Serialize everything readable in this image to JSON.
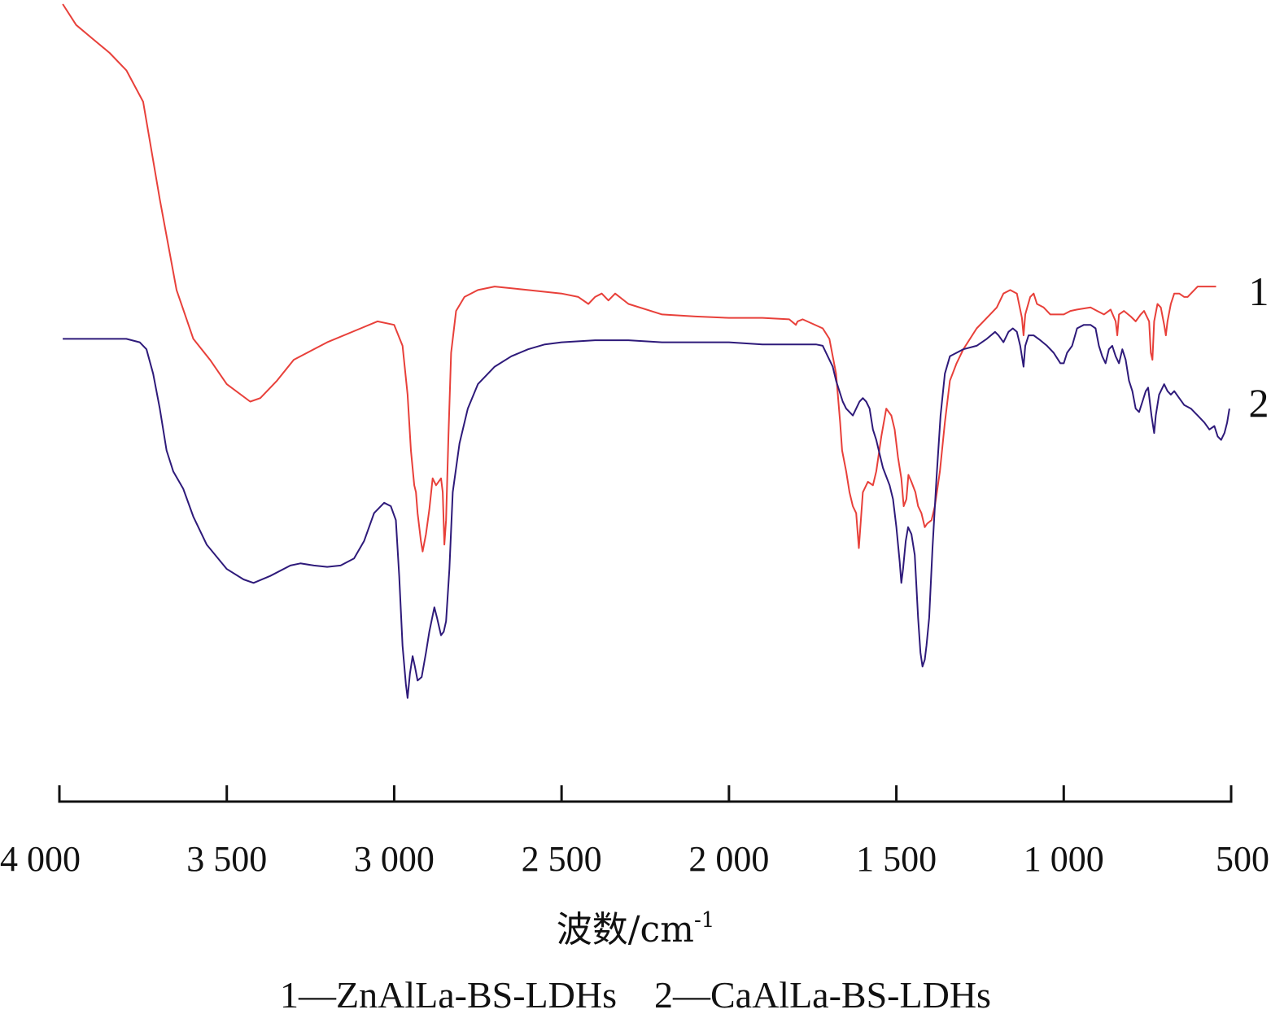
{
  "chart_data": {
    "type": "line",
    "xlabel": "波数/cm",
    "xlabel_sup": "-1",
    "xlim": [
      4000,
      500
    ],
    "x_reversed": true,
    "x_ticks": [
      4000,
      3500,
      3000,
      2500,
      2000,
      1500,
      1000,
      500
    ],
    "x_tick_labels": [
      "4 000",
      "3 500",
      "3 000",
      "2 500",
      "2 000",
      "1 500",
      "1 000",
      "500"
    ],
    "y_axis_shown": false,
    "ylim": [
      0,
      100
    ],
    "grid": false,
    "series": [
      {
        "name": "1",
        "color": "#e8403a",
        "points": [
          [
            3990,
            100
          ],
          [
            3950,
            97
          ],
          [
            3900,
            95
          ],
          [
            3850,
            93
          ],
          [
            3800,
            90.5
          ],
          [
            3750,
            86
          ],
          [
            3700,
            72
          ],
          [
            3650,
            59
          ],
          [
            3600,
            52
          ],
          [
            3550,
            49
          ],
          [
            3500,
            45.5
          ],
          [
            3430,
            43
          ],
          [
            3400,
            43.5
          ],
          [
            3350,
            46
          ],
          [
            3300,
            49
          ],
          [
            3200,
            51.5
          ],
          [
            3100,
            53.5
          ],
          [
            3050,
            54.5
          ],
          [
            3000,
            54
          ],
          [
            2975,
            51
          ],
          [
            2960,
            44
          ],
          [
            2950,
            36
          ],
          [
            2940,
            31
          ],
          [
            2935,
            30
          ],
          [
            2930,
            27
          ],
          [
            2920,
            23
          ],
          [
            2915,
            21.5
          ],
          [
            2905,
            24
          ],
          [
            2895,
            27.5
          ],
          [
            2885,
            32
          ],
          [
            2875,
            31
          ],
          [
            2860,
            32
          ],
          [
            2855,
            30
          ],
          [
            2850,
            22.5
          ],
          [
            2845,
            26
          ],
          [
            2838,
            38
          ],
          [
            2830,
            50
          ],
          [
            2815,
            56
          ],
          [
            2790,
            58
          ],
          [
            2750,
            59
          ],
          [
            2700,
            59.5
          ],
          [
            2600,
            59
          ],
          [
            2500,
            58.5
          ],
          [
            2450,
            58
          ],
          [
            2420,
            57
          ],
          [
            2400,
            58
          ],
          [
            2380,
            58.5
          ],
          [
            2360,
            57.5
          ],
          [
            2340,
            58.5
          ],
          [
            2300,
            57
          ],
          [
            2200,
            55.5
          ],
          [
            2100,
            55.2
          ],
          [
            2000,
            55
          ],
          [
            1900,
            55
          ],
          [
            1820,
            54.8
          ],
          [
            1800,
            54
          ],
          [
            1795,
            54.5
          ],
          [
            1780,
            54.8
          ],
          [
            1720,
            53.5
          ],
          [
            1700,
            52
          ],
          [
            1680,
            47
          ],
          [
            1668,
            40
          ],
          [
            1662,
            36
          ],
          [
            1650,
            33
          ],
          [
            1640,
            30
          ],
          [
            1630,
            28
          ],
          [
            1620,
            27
          ],
          [
            1612,
            22
          ],
          [
            1600,
            30
          ],
          [
            1585,
            31.5
          ],
          [
            1570,
            31
          ],
          [
            1560,
            33
          ],
          [
            1545,
            38
          ],
          [
            1530,
            42
          ],
          [
            1515,
            41
          ],
          [
            1505,
            39
          ],
          [
            1495,
            35
          ],
          [
            1485,
            32
          ],
          [
            1478,
            28
          ],
          [
            1470,
            29
          ],
          [
            1464,
            32.5
          ],
          [
            1455,
            31.5
          ],
          [
            1443,
            30
          ],
          [
            1435,
            28
          ],
          [
            1425,
            27
          ],
          [
            1415,
            25
          ],
          [
            1408,
            25.5
          ],
          [
            1395,
            26
          ],
          [
            1385,
            28
          ],
          [
            1370,
            33
          ],
          [
            1355,
            40
          ],
          [
            1340,
            46
          ],
          [
            1320,
            48.5
          ],
          [
            1300,
            50.5
          ],
          [
            1260,
            53.5
          ],
          [
            1220,
            55.5
          ],
          [
            1200,
            56.5
          ],
          [
            1180,
            58.5
          ],
          [
            1160,
            59
          ],
          [
            1140,
            58.5
          ],
          [
            1125,
            55
          ],
          [
            1120,
            52.5
          ],
          [
            1115,
            55.5
          ],
          [
            1100,
            58
          ],
          [
            1090,
            58.5
          ],
          [
            1080,
            57
          ],
          [
            1060,
            56.5
          ],
          [
            1040,
            55.5
          ],
          [
            1000,
            55.5
          ],
          [
            980,
            56
          ],
          [
            960,
            56.2
          ],
          [
            920,
            56.5
          ],
          [
            900,
            56
          ],
          [
            880,
            55.5
          ],
          [
            860,
            56.2
          ],
          [
            845,
            54.5
          ],
          [
            840,
            52.5
          ],
          [
            835,
            55.5
          ],
          [
            820,
            56
          ],
          [
            800,
            55.2
          ],
          [
            785,
            54.5
          ],
          [
            770,
            55.5
          ],
          [
            760,
            56
          ],
          [
            745,
            54.5
          ],
          [
            740,
            50
          ],
          [
            735,
            49
          ],
          [
            730,
            54.5
          ],
          [
            720,
            57
          ],
          [
            710,
            56.5
          ],
          [
            700,
            54
          ],
          [
            695,
            52.5
          ],
          [
            690,
            54.5
          ],
          [
            680,
            57
          ],
          [
            670,
            58.5
          ],
          [
            655,
            58.5
          ],
          [
            640,
            58
          ],
          [
            630,
            58
          ],
          [
            620,
            58.5
          ],
          [
            600,
            59.5
          ],
          [
            570,
            59.5
          ],
          [
            545,
            59.5
          ]
        ]
      },
      {
        "name": "2",
        "color": "#2e1a7a",
        "points": [
          [
            3990,
            52
          ],
          [
            3900,
            52
          ],
          [
            3800,
            52
          ],
          [
            3760,
            51.5
          ],
          [
            3740,
            50.5
          ],
          [
            3720,
            47
          ],
          [
            3700,
            42
          ],
          [
            3680,
            36
          ],
          [
            3660,
            33
          ],
          [
            3630,
            30.5
          ],
          [
            3600,
            26.5
          ],
          [
            3560,
            22.5
          ],
          [
            3500,
            19
          ],
          [
            3450,
            17.5
          ],
          [
            3420,
            17
          ],
          [
            3370,
            18
          ],
          [
            3310,
            19.5
          ],
          [
            3280,
            19.8
          ],
          [
            3240,
            19.5
          ],
          [
            3200,
            19.3
          ],
          [
            3160,
            19.5
          ],
          [
            3120,
            20.5
          ],
          [
            3090,
            23
          ],
          [
            3060,
            27
          ],
          [
            3030,
            28.5
          ],
          [
            3010,
            28
          ],
          [
            2995,
            26
          ],
          [
            2985,
            18
          ],
          [
            2975,
            8
          ],
          [
            2965,
            2.5
          ],
          [
            2960,
            0.5
          ],
          [
            2953,
            4
          ],
          [
            2945,
            6.5
          ],
          [
            2938,
            5
          ],
          [
            2930,
            3
          ],
          [
            2918,
            3.5
          ],
          [
            2905,
            7
          ],
          [
            2895,
            10
          ],
          [
            2880,
            13.5
          ],
          [
            2872,
            12
          ],
          [
            2865,
            10.5
          ],
          [
            2860,
            9.5
          ],
          [
            2852,
            10
          ],
          [
            2845,
            11.5
          ],
          [
            2835,
            19
          ],
          [
            2825,
            30
          ],
          [
            2805,
            37
          ],
          [
            2780,
            42
          ],
          [
            2750,
            45.5
          ],
          [
            2700,
            48
          ],
          [
            2650,
            49.5
          ],
          [
            2600,
            50.5
          ],
          [
            2550,
            51.2
          ],
          [
            2500,
            51.5
          ],
          [
            2400,
            51.8
          ],
          [
            2300,
            51.8
          ],
          [
            2200,
            51.5
          ],
          [
            2100,
            51.5
          ],
          [
            2000,
            51.5
          ],
          [
            1900,
            51.2
          ],
          [
            1800,
            51.2
          ],
          [
            1740,
            51.2
          ],
          [
            1720,
            51
          ],
          [
            1700,
            49
          ],
          [
            1690,
            48
          ],
          [
            1680,
            46
          ],
          [
            1660,
            43
          ],
          [
            1650,
            42
          ],
          [
            1640,
            41.5
          ],
          [
            1630,
            41
          ],
          [
            1620,
            42
          ],
          [
            1610,
            43
          ],
          [
            1600,
            43.5
          ],
          [
            1590,
            43
          ],
          [
            1580,
            42
          ],
          [
            1570,
            39
          ],
          [
            1560,
            37.5
          ],
          [
            1550,
            35.5
          ],
          [
            1540,
            33.5
          ],
          [
            1520,
            31
          ],
          [
            1510,
            29
          ],
          [
            1500,
            25
          ],
          [
            1490,
            20
          ],
          [
            1485,
            17
          ],
          [
            1480,
            19
          ],
          [
            1472,
            23
          ],
          [
            1465,
            25
          ],
          [
            1455,
            24
          ],
          [
            1445,
            21
          ],
          [
            1435,
            12
          ],
          [
            1428,
            7
          ],
          [
            1422,
            5
          ],
          [
            1415,
            6
          ],
          [
            1410,
            8
          ],
          [
            1402,
            12
          ],
          [
            1392,
            22
          ],
          [
            1380,
            32
          ],
          [
            1368,
            41
          ],
          [
            1355,
            47
          ],
          [
            1340,
            49.5
          ],
          [
            1320,
            50
          ],
          [
            1300,
            50.5
          ],
          [
            1260,
            51
          ],
          [
            1230,
            52
          ],
          [
            1205,
            53
          ],
          [
            1195,
            52.5
          ],
          [
            1180,
            51.5
          ],
          [
            1165,
            53
          ],
          [
            1152,
            53.5
          ],
          [
            1140,
            53
          ],
          [
            1130,
            51
          ],
          [
            1120,
            48
          ],
          [
            1115,
            51
          ],
          [
            1105,
            52.5
          ],
          [
            1090,
            52.5
          ],
          [
            1070,
            51.8
          ],
          [
            1050,
            51
          ],
          [
            1030,
            50
          ],
          [
            1010,
            48.5
          ],
          [
            1000,
            48.5
          ],
          [
            990,
            50
          ],
          [
            975,
            51
          ],
          [
            960,
            53.5
          ],
          [
            940,
            54
          ],
          [
            920,
            54
          ],
          [
            905,
            53.5
          ],
          [
            895,
            51
          ],
          [
            885,
            49.5
          ],
          [
            875,
            48.5
          ],
          [
            865,
            50.5
          ],
          [
            855,
            51
          ],
          [
            845,
            49.5
          ],
          [
            835,
            48.5
          ],
          [
            825,
            50.5
          ],
          [
            815,
            49
          ],
          [
            805,
            46
          ],
          [
            795,
            44.5
          ],
          [
            785,
            42
          ],
          [
            775,
            41.5
          ],
          [
            765,
            43
          ],
          [
            755,
            44.5
          ],
          [
            748,
            45
          ],
          [
            738,
            41
          ],
          [
            730,
            38.5
          ],
          [
            725,
            41
          ],
          [
            715,
            44
          ],
          [
            700,
            45.5
          ],
          [
            690,
            44.5
          ],
          [
            680,
            44
          ],
          [
            670,
            44.5
          ],
          [
            655,
            43.5
          ],
          [
            640,
            42.5
          ],
          [
            620,
            42
          ],
          [
            600,
            41
          ],
          [
            580,
            40
          ],
          [
            565,
            39
          ],
          [
            550,
            39.5
          ],
          [
            540,
            38
          ],
          [
            530,
            37.5
          ],
          [
            520,
            38.5
          ],
          [
            512,
            40
          ],
          [
            505,
            42
          ]
        ]
      }
    ],
    "series_tags": [
      {
        "label": "1",
        "y": 58.8
      },
      {
        "label": "2",
        "y": 42.8
      }
    ],
    "caption": "1—ZnAlLa-BS-LDHs    2—CaAlLa-BS-LDHs"
  }
}
